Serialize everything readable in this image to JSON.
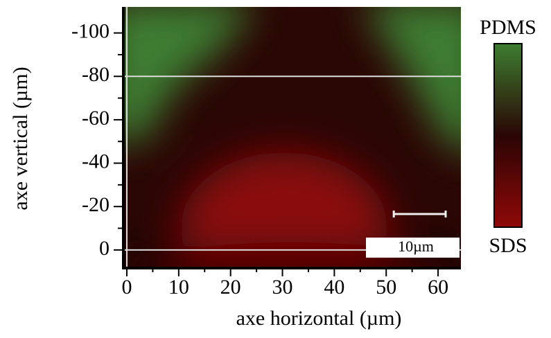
{
  "chart_data": {
    "type": "heatmap",
    "x_label": "axe horizontal (µm)",
    "y_label": "axe vertical (µm)",
    "xlim": [
      -0.4,
      64.4
    ],
    "ylim": [
      7.7,
      -112
    ],
    "xticks": [
      0,
      10,
      20,
      30,
      40,
      50,
      60
    ],
    "yticks": [
      0,
      -20,
      -40,
      -60,
      -80,
      -100
    ],
    "reference_lines": {
      "x": [
        0
      ],
      "y": [
        -80,
        0
      ]
    },
    "colorbar": {
      "top_label": "PDMS",
      "bottom_label": "SDS",
      "colors": [
        "#3d7d30",
        "#2a0604",
        "#900808"
      ]
    },
    "scale_bar": {
      "label": "10µm",
      "length": 10
    }
  }
}
